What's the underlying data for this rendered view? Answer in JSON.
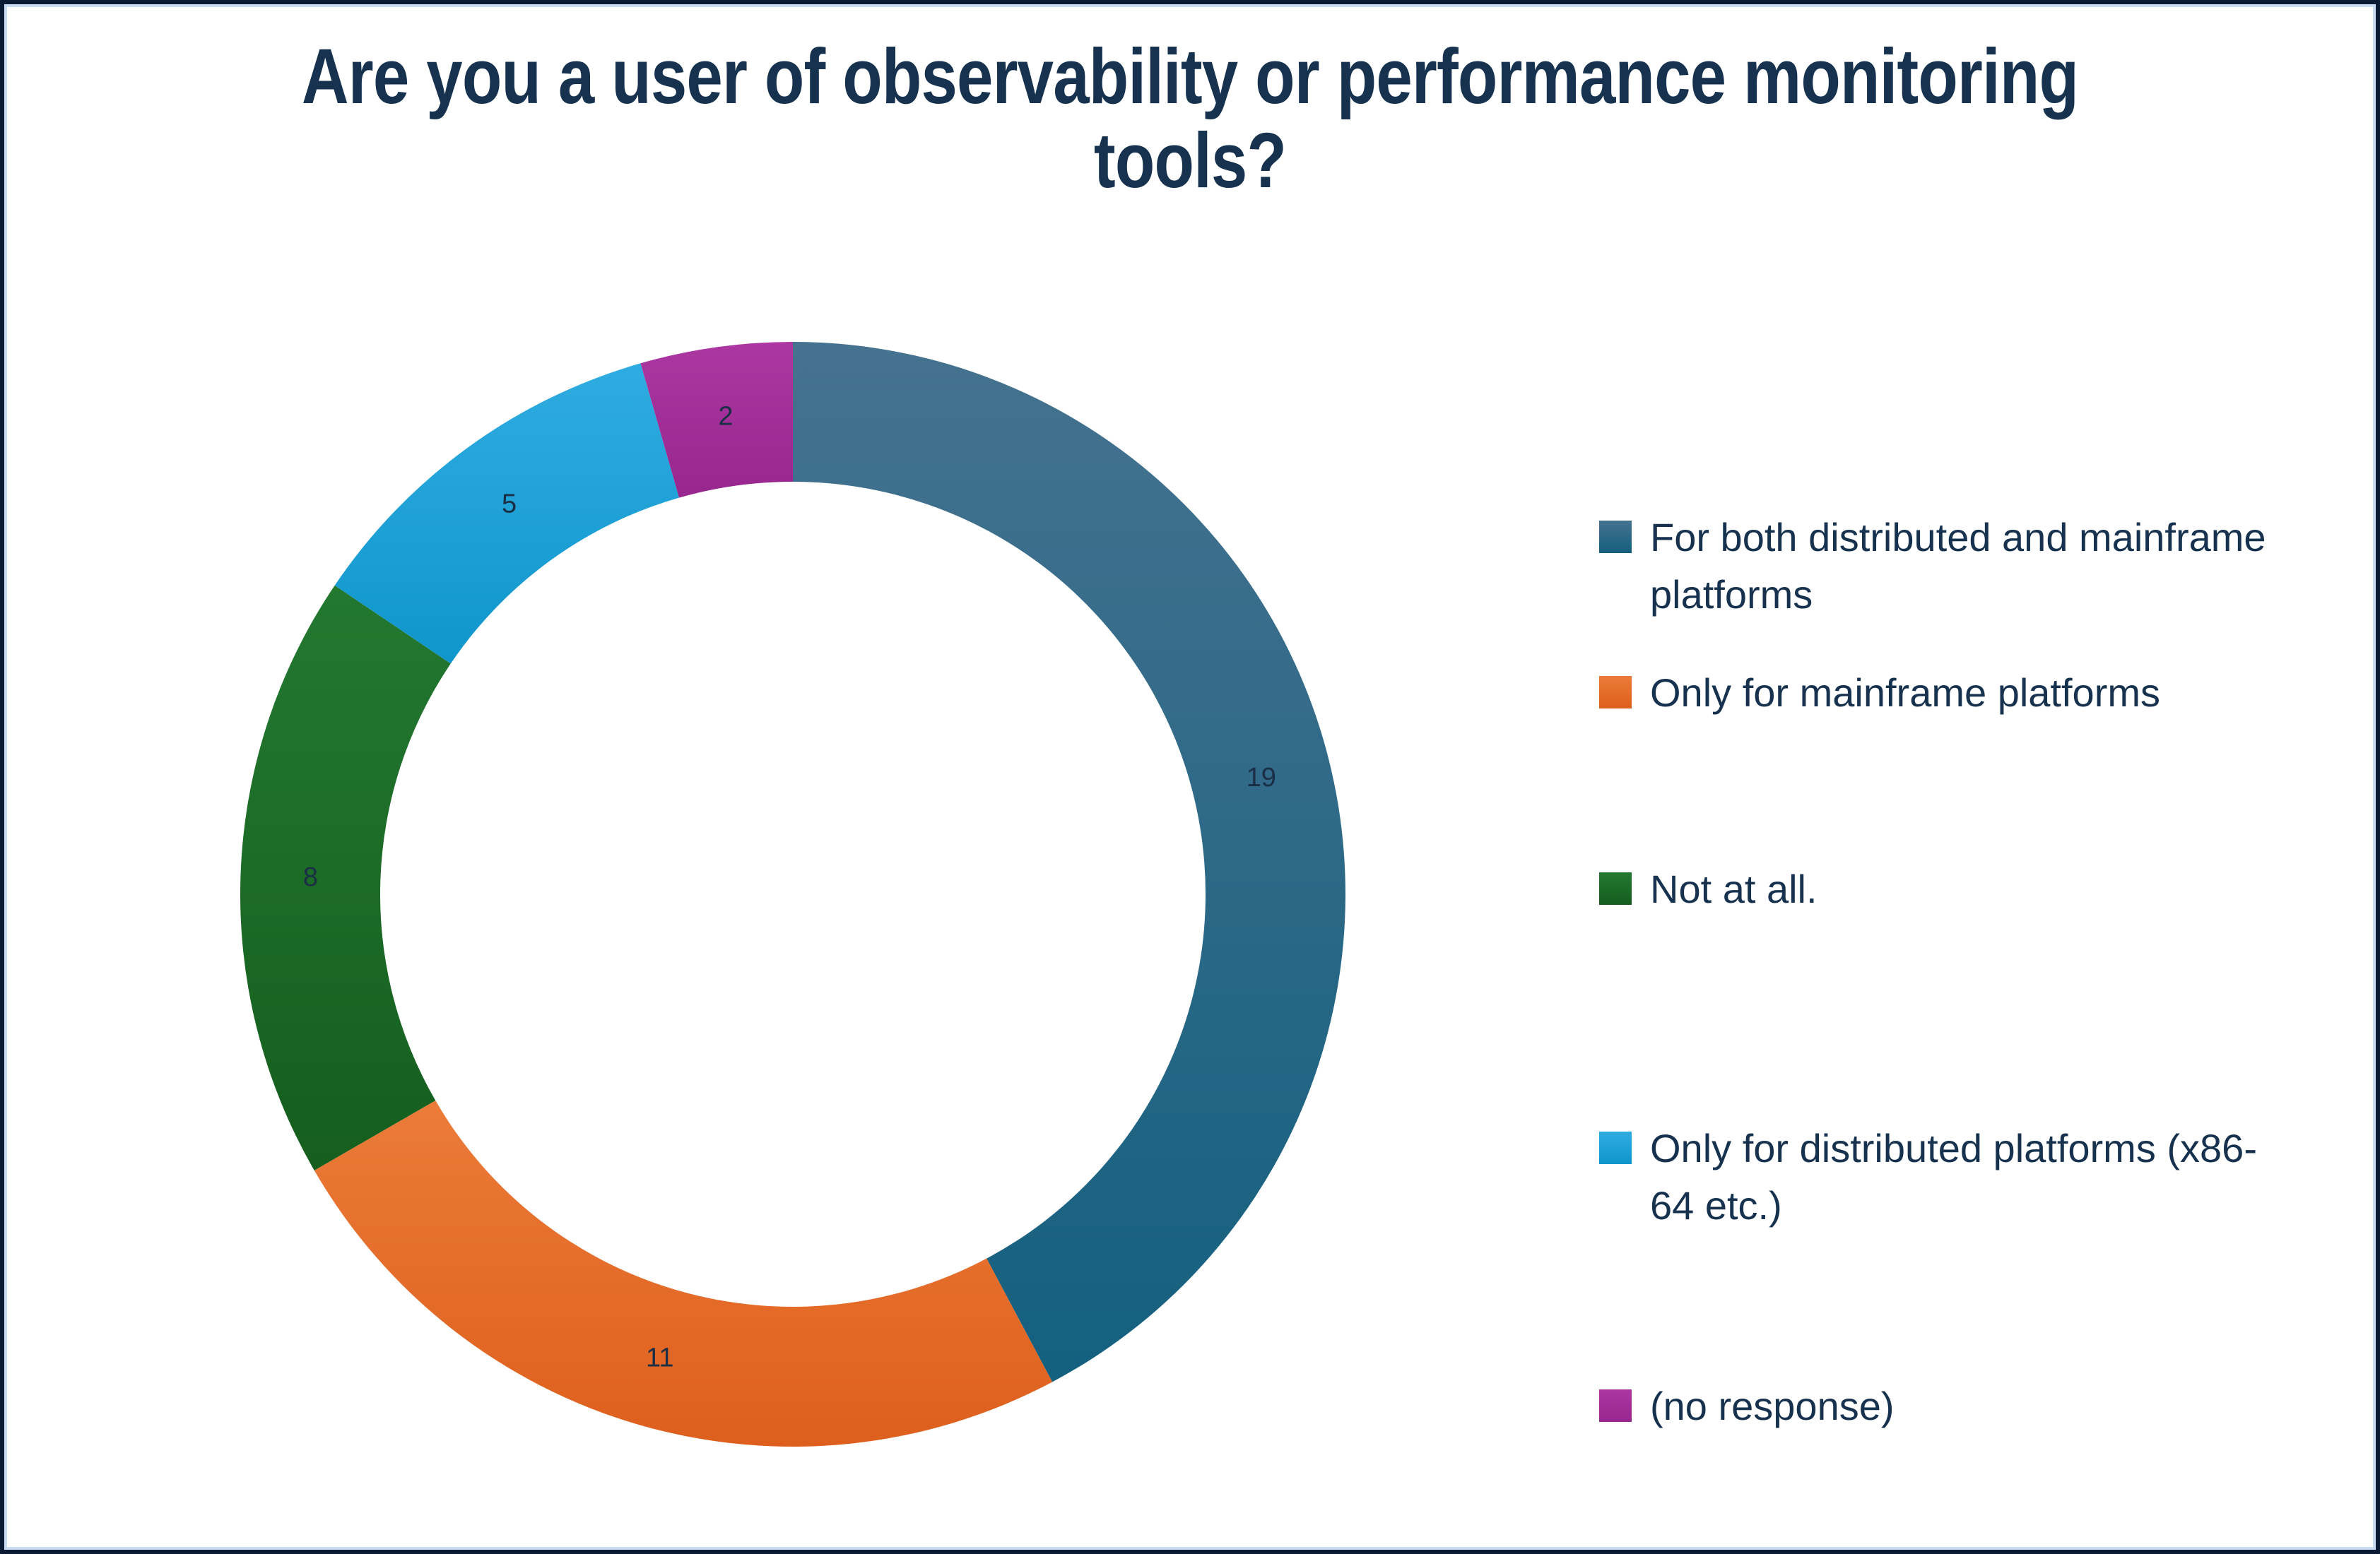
{
  "title": {
    "line1": "Are you a user of observability or performance monitoring",
    "line2": "tools?"
  },
  "chart_data": {
    "type": "pie",
    "subtype": "donut",
    "title": "Are you a user of observability or performance monitoring tools?",
    "categories": [
      "For both distributed and mainframe platforms",
      "Only for  mainframe platforms",
      "Not at all.",
      "Only for distributed platforms (x86-64 etc.)",
      "(no response)"
    ],
    "values": [
      19,
      11,
      8,
      5,
      2
    ],
    "colors": [
      "#156082",
      "#E97132",
      "#196B24",
      "#0F9ED5",
      "#A02B93"
    ],
    "colors_light": [
      "#45728F",
      "#EC7B39",
      "#237830",
      "#2FACE2",
      "#AC37A2"
    ],
    "colors_dark": [
      "#14607F",
      "#DE5F1D",
      "#155E1E",
      "#0F96CB",
      "#97268E"
    ],
    "start_angle_deg": 0,
    "direction": "clockwise",
    "hole_ratio": 0.75,
    "grid": false,
    "legend_position": "right",
    "data_labels": [
      "19",
      "11",
      "8",
      "5",
      "2"
    ],
    "data_label_color": "#1A2E45",
    "text_color": "#16324E",
    "background_color": "#FFFFFF",
    "border_outer_color": "#0A1A33",
    "border_inner_color": "#C9DCEF"
  }
}
